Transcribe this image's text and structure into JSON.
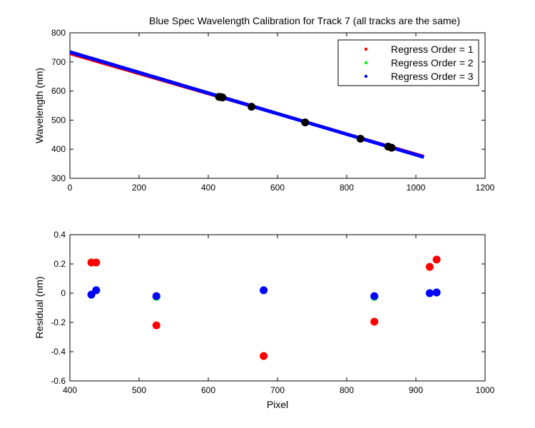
{
  "chart_data": [
    {
      "type": "line",
      "title": "Blue Spec Wavelength Calibration for Track 7 (all tracks are the same)",
      "xlabel": "",
      "ylabel": "Wavelength (nm)",
      "xlim": [
        0,
        1200
      ],
      "ylim": [
        300,
        800
      ],
      "xticks": [
        0,
        200,
        400,
        600,
        800,
        1000,
        1200
      ],
      "yticks": [
        300,
        400,
        500,
        600,
        700,
        800
      ],
      "grid": false,
      "legend_position": "top-right",
      "series": [
        {
          "name": "Regress Order = 1",
          "color": "#ff0000",
          "x": [
            0,
            1023
          ],
          "y": [
            728,
            376
          ]
        },
        {
          "name": "Regress Order = 2",
          "color": "#00ff00",
          "x": [
            0,
            1023
          ],
          "y": [
            734,
            373
          ]
        },
        {
          "name": "Regress Order = 3",
          "color": "#0000ff",
          "x": [
            0,
            1023
          ],
          "y": [
            734,
            373
          ]
        }
      ],
      "points": {
        "color": "#000000",
        "x": [
          431,
          437,
          441,
          525,
          680,
          840,
          920,
          930
        ],
        "y": [
          580,
          579,
          578,
          546,
          492,
          436,
          409,
          405
        ]
      }
    },
    {
      "type": "scatter",
      "title": "",
      "xlabel": "Pixel",
      "ylabel": "Residual (nm)",
      "xlim": [
        400,
        1000
      ],
      "ylim": [
        -0.6,
        0.4
      ],
      "xticks": [
        400,
        500,
        600,
        700,
        800,
        900,
        1000
      ],
      "yticks": [
        -0.6,
        -0.4,
        -0.2,
        0,
        0.2,
        0.4
      ],
      "grid": false,
      "series": [
        {
          "name": "Regress Order = 1",
          "color": "#ff0000",
          "x": [
            431,
            438,
            525,
            680,
            840,
            920,
            930
          ],
          "y": [
            0.21,
            0.21,
            -0.22,
            -0.43,
            -0.195,
            0.18,
            0.23
          ]
        },
        {
          "name": "Regress Order = 2",
          "color": "#00ff00",
          "x": [
            431,
            438,
            525,
            680,
            840,
            920,
            930
          ],
          "y": [
            -0.01,
            0.02,
            -0.025,
            0.02,
            -0.025,
            0.0,
            0.005
          ]
        },
        {
          "name": "Regress Order = 3",
          "color": "#0000ff",
          "x": [
            431,
            438,
            525,
            680,
            840,
            920,
            930
          ],
          "y": [
            -0.01,
            0.02,
            -0.02,
            0.02,
            -0.02,
            0.0,
            0.005
          ]
        }
      ]
    }
  ]
}
